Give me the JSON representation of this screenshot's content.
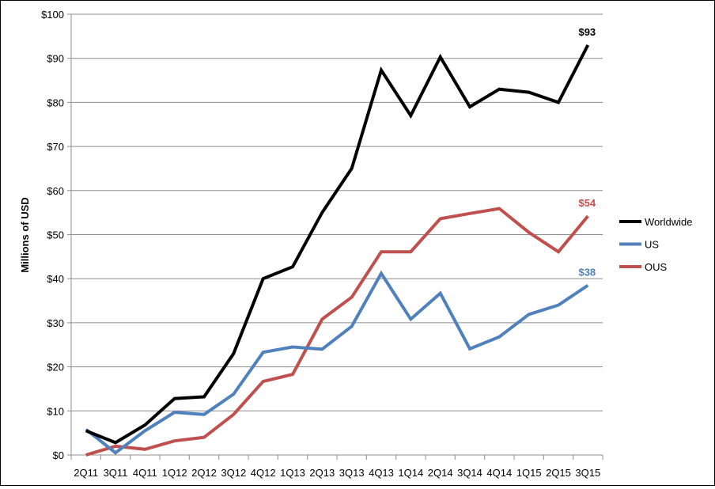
{
  "chart_data": {
    "type": "line",
    "title": "",
    "xlabel": "",
    "ylabel": "Millions of USD",
    "ylim": [
      0,
      100
    ],
    "yticks": [
      0,
      10,
      20,
      30,
      40,
      50,
      60,
      70,
      80,
      90,
      100
    ],
    "ytick_labels": [
      "$0",
      "$10",
      "$20",
      "$30",
      "$40",
      "$50",
      "$60",
      "$70",
      "$80",
      "$90",
      "$100"
    ],
    "grid": "horizontal",
    "legend_position": "right",
    "categories": [
      "2Q11",
      "3Q11",
      "4Q11",
      "1Q12",
      "2Q12",
      "3Q12",
      "4Q12",
      "1Q13",
      "2Q13",
      "3Q13",
      "4Q13",
      "1Q14",
      "2Q14",
      "3Q14",
      "4Q14",
      "1Q15",
      "2Q15",
      "3Q15"
    ],
    "series": [
      {
        "name": "Worldwide",
        "color": "#000000",
        "values": [
          5.5,
          2.8,
          6.8,
          12.8,
          13.2,
          23,
          40,
          42.7,
          55,
          65,
          87.3,
          77,
          90.3,
          79,
          83,
          82.3,
          80,
          93
        ],
        "end_label": "$93"
      },
      {
        "name": "US",
        "color": "#4f81bd",
        "values": [
          5.8,
          0.5,
          5.5,
          9.7,
          9.2,
          13.8,
          23.3,
          24.5,
          24,
          29.2,
          41.2,
          30.8,
          36.7,
          24.1,
          26.8,
          31.9,
          34,
          38.5
        ],
        "end_label": "$38"
      },
      {
        "name": "OUS",
        "color": "#c0504d",
        "values": [
          0,
          2,
          1.3,
          3.2,
          4,
          9.2,
          16.7,
          18.3,
          30.8,
          35.8,
          46.1,
          46.1,
          53.6,
          54.8,
          55.9,
          50.5,
          46.1,
          54.2
        ],
        "end_label": "$54"
      }
    ]
  }
}
